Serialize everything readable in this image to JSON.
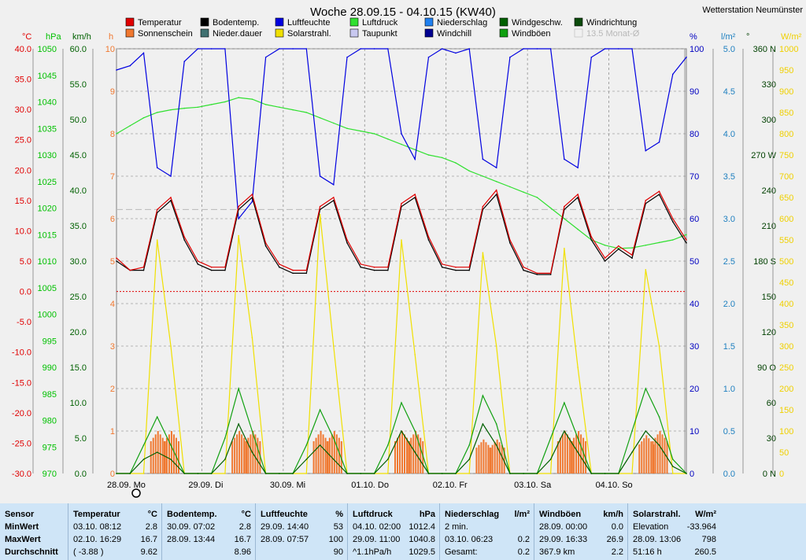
{
  "title": "Woche 28.09.15 - 04.10.15 (KW40)",
  "station": "Wetterstation Neumünster",
  "legend": [
    {
      "label": "Temperatur",
      "color": "#e00000"
    },
    {
      "label": "Sonnenschein",
      "color": "#f07830"
    },
    {
      "label": "Bodentemp.",
      "color": "#000000"
    },
    {
      "label": "Nieder.dauer",
      "color": "#407070"
    },
    {
      "label": "Luftfeuchte",
      "color": "#0000e0"
    },
    {
      "label": "Solarstrahl.",
      "color": "#f0e000"
    },
    {
      "label": "Luftdruck",
      "color": "#30e030"
    },
    {
      "label": "Taupunkt",
      "color": "#c8c8f0"
    },
    {
      "label": "Niederschlag",
      "color": "#2080f0"
    },
    {
      "label": "Windchill",
      "color": "#000090"
    },
    {
      "label": "Windgeschw.",
      "color": "#006000"
    },
    {
      "label": "Windböen",
      "color": "#10a010"
    },
    {
      "label": "Windrichtung",
      "color": "#0a4a0a"
    },
    {
      "label": "13.5 Monat-Ø",
      "color": "#b8b8b8"
    }
  ],
  "axes": {
    "temp": {
      "unit": "°C",
      "ticks": [
        "40.0",
        "35.0",
        "30.0",
        "25.0",
        "20.0",
        "15.0",
        "10.0",
        "5.0",
        "0.0",
        "-5.0",
        "-10.0",
        "-15.0",
        "-20.0",
        "-25.0",
        "-30.0"
      ],
      "color": "#e00000"
    },
    "hpa": {
      "unit": "hPa",
      "ticks": [
        "1050",
        "1045",
        "1040",
        "1035",
        "1030",
        "1025",
        "1020",
        "1015",
        "1010",
        "1005",
        "1000",
        "995",
        "990",
        "985",
        "980",
        "975",
        "970"
      ],
      "color": "#00c000"
    },
    "kmh": {
      "unit": "km/h",
      "ticks": [
        "60.0",
        "55.0",
        "50.0",
        "45.0",
        "40.0",
        "35.0",
        "30.0",
        "25.0",
        "20.0",
        "15.0",
        "10.0",
        "5.0",
        "0.0"
      ],
      "color": "#006000"
    },
    "h": {
      "unit": "h",
      "ticks": [
        "10",
        "9",
        "8",
        "7",
        "6",
        "5",
        "4",
        "3",
        "2",
        "1",
        "0"
      ],
      "color": "#f07830"
    },
    "pct": {
      "unit": "%",
      "ticks": [
        "100",
        "90",
        "80",
        "70",
        "60",
        "50",
        "40",
        "30",
        "20",
        "10",
        "0"
      ],
      "color": "#0000c0"
    },
    "lm2": {
      "unit": "l/m²",
      "ticks": [
        "5.0",
        "4.5",
        "4.0",
        "3.5",
        "3.0",
        "2.5",
        "2.0",
        "1.5",
        "1.0",
        "0.5",
        "0.0"
      ],
      "color": "#2080c0"
    },
    "deg": {
      "unit": "°",
      "ticks": [
        "360 N",
        "330",
        "300",
        "270 W",
        "240",
        "210",
        "180 S",
        "150",
        "120",
        "90 O",
        "60",
        "30",
        "0 N"
      ],
      "color": "#004000"
    },
    "wm2": {
      "unit": "W/m²",
      "ticks": [
        "1000",
        "950",
        "900",
        "850",
        "800",
        "750",
        "700",
        "650",
        "600",
        "550",
        "500",
        "450",
        "400",
        "350",
        "300",
        "250",
        "200",
        "150",
        "100",
        "50",
        "0"
      ],
      "color": "#f0d000"
    }
  },
  "x_labels": [
    "28.09.  Mo",
    "29.09.  Di",
    "30.09.  Mi",
    "01.10.  Do",
    "02.10.  Fr",
    "03.10.  Sa",
    "04.10.  So"
  ],
  "chart_data": {
    "type": "line",
    "title": "Woche 28.09.15 - 04.10.15 (KW40)",
    "x": [
      "28.09. 00:00",
      "28.09. 04:00",
      "28.09. 08:00",
      "28.09. 12:00",
      "28.09. 16:00",
      "28.09. 20:00",
      "29.09. 00:00",
      "29.09. 04:00",
      "29.09. 08:00",
      "29.09. 12:00",
      "29.09. 16:00",
      "29.09. 20:00",
      "30.09. 00:00",
      "30.09. 04:00",
      "30.09. 08:00",
      "30.09. 12:00",
      "30.09. 16:00",
      "30.09. 20:00",
      "01.10. 00:00",
      "01.10. 04:00",
      "01.10. 08:00",
      "01.10. 12:00",
      "01.10. 16:00",
      "01.10. 20:00",
      "02.10. 00:00",
      "02.10. 04:00",
      "02.10. 08:00",
      "02.10. 12:00",
      "02.10. 16:00",
      "02.10. 20:00",
      "03.10. 00:00",
      "03.10. 04:00",
      "03.10. 08:00",
      "03.10. 12:00",
      "03.10. 16:00",
      "03.10. 20:00",
      "04.10. 00:00",
      "04.10. 04:00",
      "04.10. 08:00",
      "04.10. 12:00",
      "04.10. 16:00",
      "04.10. 20:00",
      "05.10. 00:00"
    ],
    "series": [
      {
        "name": "Temperatur",
        "unit": "°C",
        "values": [
          5.5,
          3.5,
          4.0,
          13.5,
          15.5,
          9.0,
          5.0,
          4.0,
          4.0,
          14.0,
          16.0,
          8.0,
          4.5,
          3.5,
          3.5,
          14.0,
          15.5,
          8.5,
          4.5,
          4.0,
          4.0,
          14.5,
          16.0,
          9.0,
          4.5,
          4.0,
          4.0,
          14.0,
          16.7,
          8.5,
          4.0,
          3.0,
          3.0,
          14.0,
          16.0,
          9.0,
          5.5,
          7.5,
          6.0,
          15.0,
          16.5,
          12.0,
          8.5
        ]
      },
      {
        "name": "Bodentemp.",
        "unit": "°C",
        "values": [
          5.0,
          3.5,
          3.5,
          13.0,
          15.0,
          8.5,
          4.5,
          3.5,
          3.5,
          13.5,
          15.5,
          7.5,
          4.0,
          3.0,
          3.0,
          13.5,
          15.0,
          8.0,
          4.0,
          3.5,
          3.5,
          14.0,
          15.5,
          8.5,
          4.0,
          3.5,
          3.5,
          13.5,
          16.0,
          8.0,
          3.5,
          2.8,
          2.8,
          13.5,
          15.5,
          8.5,
          5.0,
          7.0,
          5.5,
          14.5,
          16.0,
          11.5,
          8.0
        ]
      },
      {
        "name": "Luftfeuchte",
        "unit": "%",
        "values": [
          95,
          96,
          99,
          72,
          70,
          97,
          100,
          100,
          100,
          60,
          64,
          98,
          100,
          100,
          100,
          70,
          68,
          98,
          100,
          100,
          100,
          80,
          74,
          98,
          100,
          99,
          100,
          74,
          72,
          98,
          100,
          100,
          100,
          74,
          72,
          98,
          100,
          100,
          100,
          76,
          78,
          94,
          98
        ]
      },
      {
        "name": "Luftdruck",
        "unit": "hPa",
        "values": [
          1034,
          1035.5,
          1037,
          1038,
          1038.5,
          1038.8,
          1039,
          1039.5,
          1040,
          1040.8,
          1040.5,
          1039.5,
          1039,
          1038.5,
          1038,
          1037,
          1036,
          1035,
          1034.5,
          1034,
          1033,
          1032,
          1031,
          1030,
          1029.5,
          1028.5,
          1027,
          1026,
          1025,
          1024,
          1023,
          1022,
          1020,
          1018,
          1016,
          1014,
          1013,
          1012.4,
          1012.5,
          1013,
          1013.5,
          1014,
          1015
        ]
      },
      {
        "name": "Solarstrahl.",
        "unit": "W/m²",
        "values": [
          0,
          0,
          0,
          550,
          300,
          0,
          0,
          0,
          0,
          560,
          320,
          0,
          0,
          0,
          0,
          610,
          300,
          0,
          0,
          0,
          0,
          550,
          280,
          0,
          0,
          0,
          0,
          520,
          300,
          0,
          0,
          0,
          0,
          530,
          250,
          0,
          0,
          0,
          0,
          480,
          300,
          0,
          0
        ]
      },
      {
        "name": "Windgeschw.",
        "unit": "km/h",
        "values": [
          0,
          0,
          2,
          3,
          2,
          0,
          0,
          0,
          2,
          7,
          3,
          0,
          0,
          0,
          2,
          4,
          2,
          0,
          0,
          0,
          2,
          6,
          3,
          0,
          0,
          0,
          2,
          7,
          4,
          0,
          0,
          0,
          2,
          6,
          3,
          0,
          0,
          0,
          3,
          6,
          4,
          1,
          0
        ]
      },
      {
        "name": "Windböen",
        "unit": "km/h",
        "values": [
          0,
          0,
          4,
          8,
          4,
          0,
          0,
          0,
          5,
          12,
          6,
          0,
          0,
          0,
          4,
          9,
          5,
          0,
          0,
          0,
          4,
          10,
          6,
          0,
          0,
          0,
          4,
          11,
          7,
          0,
          0,
          0,
          5,
          10,
          5,
          0,
          0,
          0,
          6,
          12,
          8,
          2,
          0
        ]
      },
      {
        "name": "Sonnenschein",
        "unit": "h",
        "values": [
          0,
          0,
          0,
          1.0,
          1.0,
          0,
          0,
          0,
          0,
          1.0,
          1.0,
          0,
          0,
          0,
          0,
          1.0,
          1.0,
          0,
          0,
          0,
          0,
          1.0,
          1.0,
          0,
          0,
          0,
          0,
          0.8,
          0.8,
          0,
          0,
          0,
          0,
          1.0,
          1.0,
          0,
          0,
          0,
          0,
          0.9,
          1.0,
          0,
          0
        ]
      }
    ],
    "reference_lines": [
      {
        "name": "13.5 Monat-Ø",
        "unit": "°C",
        "value": 13.5
      },
      {
        "unit": "°C",
        "value": 0.0
      }
    ]
  },
  "stats": {
    "rows": [
      "Sensor",
      "MinWert",
      "MaxWert",
      "Durchschnitt"
    ],
    "columns": [
      {
        "header": "Temperatur",
        "unit": "°C",
        "cells": [
          [
            "03.10.  08:12",
            "2.8"
          ],
          [
            "02.10.  16:29",
            "16.7"
          ],
          [
            "( -3.88 )",
            "9.62"
          ]
        ]
      },
      {
        "header": "Bodentemp.",
        "unit": "°C",
        "cells": [
          [
            "30.09.  07:02",
            "2.8"
          ],
          [
            "28.09.  13:44",
            "16.7"
          ],
          [
            "",
            "8.96"
          ]
        ]
      },
      {
        "header": "Luftfeuchte",
        "unit": "%",
        "cells": [
          [
            "29.09.  14:40",
            "53"
          ],
          [
            "28.09.  07:57",
            "100"
          ],
          [
            "",
            "90"
          ]
        ]
      },
      {
        "header": "Luftdruck",
        "unit": "hPa",
        "cells": [
          [
            "04.10.  02:00",
            "1012.4"
          ],
          [
            "29.09.  11:00",
            "1040.8"
          ],
          [
            "^1.1hPa/h",
            "1029.5"
          ]
        ]
      },
      {
        "header": "Niederschlag",
        "unit": "l/m²",
        "cells": [
          [
            "2 min.",
            ""
          ],
          [
            "03.10.  06:23",
            "0.2"
          ],
          [
            "Gesamt:",
            "0.2"
          ]
        ]
      },
      {
        "header": "Windböen",
        "unit": "km/h",
        "cells": [
          [
            "28.09.  00:00",
            "0.0"
          ],
          [
            "29.09.  16:33",
            "26.9"
          ],
          [
            "367.9 km",
            "2.2"
          ]
        ]
      },
      {
        "header": "Solarstrahl.",
        "unit": "W/m²",
        "cells": [
          [
            "Elevation",
            "-33.964"
          ],
          [
            "28.09.  13:06",
            "798"
          ],
          [
            "51:16 h",
            "260.5"
          ]
        ]
      }
    ]
  }
}
